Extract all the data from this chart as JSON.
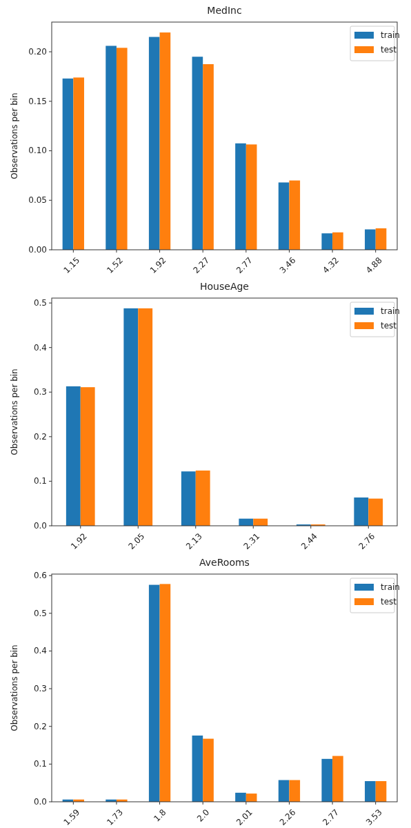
{
  "chart_data": [
    {
      "type": "bar",
      "title": "MedInc",
      "ylabel": "Observations per bin",
      "categories": [
        "1.15",
        "1.52",
        "1.92",
        "2.27",
        "2.77",
        "3.46",
        "4.32",
        "4.88"
      ],
      "series": [
        {
          "name": "train",
          "color": "#1f77b4",
          "values": [
            0.173,
            0.206,
            0.215,
            0.195,
            0.1075,
            0.068,
            0.0166,
            0.0206
          ]
        },
        {
          "name": "test",
          "color": "#ff7f0e",
          "values": [
            0.174,
            0.204,
            0.2195,
            0.1875,
            0.1064,
            0.07,
            0.0176,
            0.0217
          ]
        }
      ],
      "ylim": [
        0,
        0.23
      ],
      "yticks": [
        {
          "value": 0,
          "label": "0.00"
        },
        {
          "value": 0.05,
          "label": "0.05"
        },
        {
          "value": 0.1,
          "label": "0.10"
        },
        {
          "value": 0.15,
          "label": "0.15"
        },
        {
          "value": 0.2,
          "label": "0.20"
        }
      ],
      "legend": "top right"
    },
    {
      "type": "bar",
      "title": "HouseAge",
      "ylabel": "Observations per bin",
      "categories": [
        "1.92",
        "2.05",
        "2.13",
        "2.31",
        "2.44",
        "2.76"
      ],
      "series": [
        {
          "name": "train",
          "color": "#1f77b4",
          "values": [
            0.313,
            0.488,
            0.122,
            0.016,
            0.003,
            0.0635
          ]
        },
        {
          "name": "test",
          "color": "#ff7f0e",
          "values": [
            0.311,
            0.488,
            0.124,
            0.016,
            0.003,
            0.061
          ]
        }
      ],
      "ylim": [
        0,
        0.511
      ],
      "yticks": [
        {
          "value": 0,
          "label": "0.0"
        },
        0.1,
        0.2,
        0.3,
        0.4,
        0.5
      ],
      "legend": "top right"
    },
    {
      "type": "bar",
      "title": "AveRooms",
      "ylabel": "Observations per bin",
      "categories": [
        "1.59",
        "1.73",
        "1.8",
        "2.0",
        "2.01",
        "2.26",
        "2.77",
        "3.53"
      ],
      "series": [
        {
          "name": "train",
          "color": "#1f77b4",
          "values": [
            0.006,
            0.006,
            0.5755,
            0.1757,
            0.024,
            0.0576,
            0.1138,
            0.0548
          ]
        },
        {
          "name": "test",
          "color": "#ff7f0e",
          "values": [
            0.006,
            0.006,
            0.5777,
            0.1673,
            0.0218,
            0.0576,
            0.1216,
            0.0548
          ]
        }
      ],
      "ylim": [
        0,
        0.604
      ],
      "yticks": [
        {
          "value": 0,
          "label": "0.0"
        },
        0.1,
        0.2,
        0.3,
        0.4,
        0.5,
        0.6
      ],
      "legend": "top right"
    }
  ]
}
